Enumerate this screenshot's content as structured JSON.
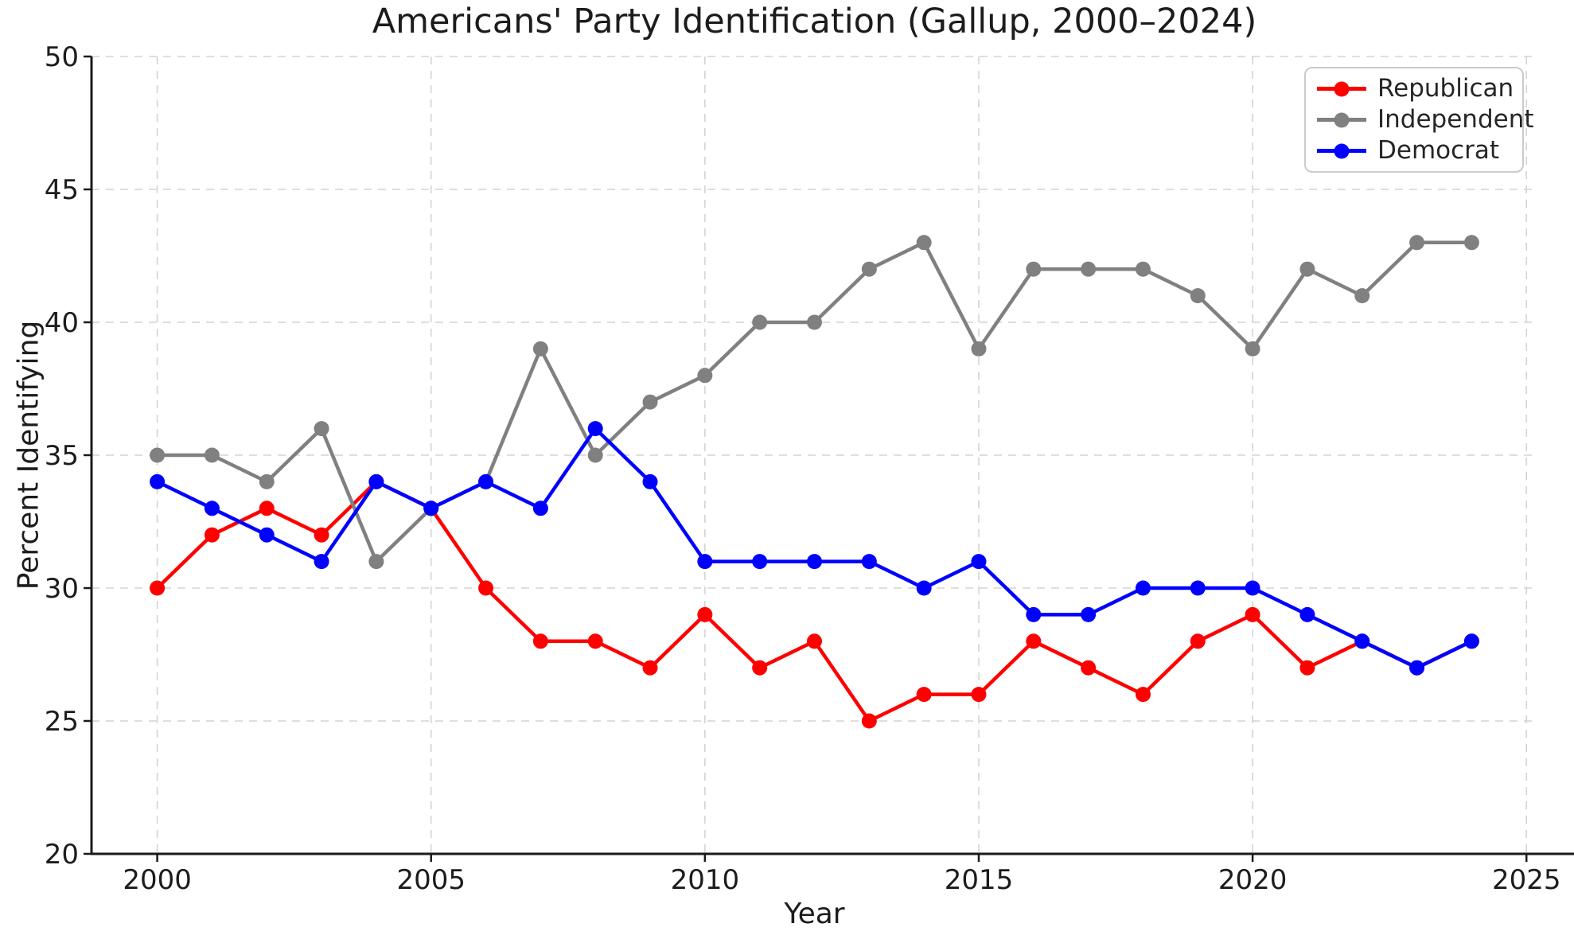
{
  "chart_data": {
    "type": "line",
    "title": "Americans' Party Identification (Gallup, 2000–2024)",
    "xlabel": "Year",
    "ylabel": "Percent Identifying",
    "xlim": [
      1998.8,
      2025.2
    ],
    "ylim": [
      20,
      50
    ],
    "x_ticks": [
      2000,
      2005,
      2010,
      2015,
      2020,
      2025
    ],
    "y_ticks": [
      20,
      25,
      30,
      35,
      40,
      45,
      50
    ],
    "grid": true,
    "legend_position": "upper right",
    "x": [
      2000,
      2001,
      2002,
      2003,
      2004,
      2005,
      2006,
      2007,
      2008,
      2009,
      2010,
      2011,
      2012,
      2013,
      2014,
      2015,
      2016,
      2017,
      2018,
      2019,
      2020,
      2021,
      2022,
      2023,
      2024
    ],
    "series": [
      {
        "name": "Republican",
        "color": "#ff0000",
        "values": [
          30,
          32,
          33,
          32,
          34,
          33,
          30,
          28,
          28,
          27,
          29,
          27,
          28,
          25,
          26,
          26,
          28,
          27,
          26,
          28,
          29,
          27,
          28,
          27,
          28
        ]
      },
      {
        "name": "Independent",
        "color": "#808080",
        "values": [
          35,
          35,
          34,
          36,
          31,
          33,
          34,
          39,
          35,
          37,
          38,
          40,
          40,
          42,
          43,
          39,
          42,
          42,
          42,
          41,
          39,
          42,
          41,
          43,
          43
        ]
      },
      {
        "name": "Democrat",
        "color": "#0000ff",
        "values": [
          34,
          33,
          32,
          31,
          34,
          33,
          34,
          33,
          36,
          34,
          31,
          31,
          31,
          31,
          30,
          31,
          29,
          29,
          30,
          30,
          30,
          29,
          28,
          27,
          28
        ]
      }
    ],
    "style": {
      "grid_color": "#d4d4d4",
      "spine_color": "#1a1a1a",
      "text_color": "#1c1c1c",
      "background": "#ffffff",
      "line_width": 4.5,
      "marker_diameter": 19
    }
  }
}
